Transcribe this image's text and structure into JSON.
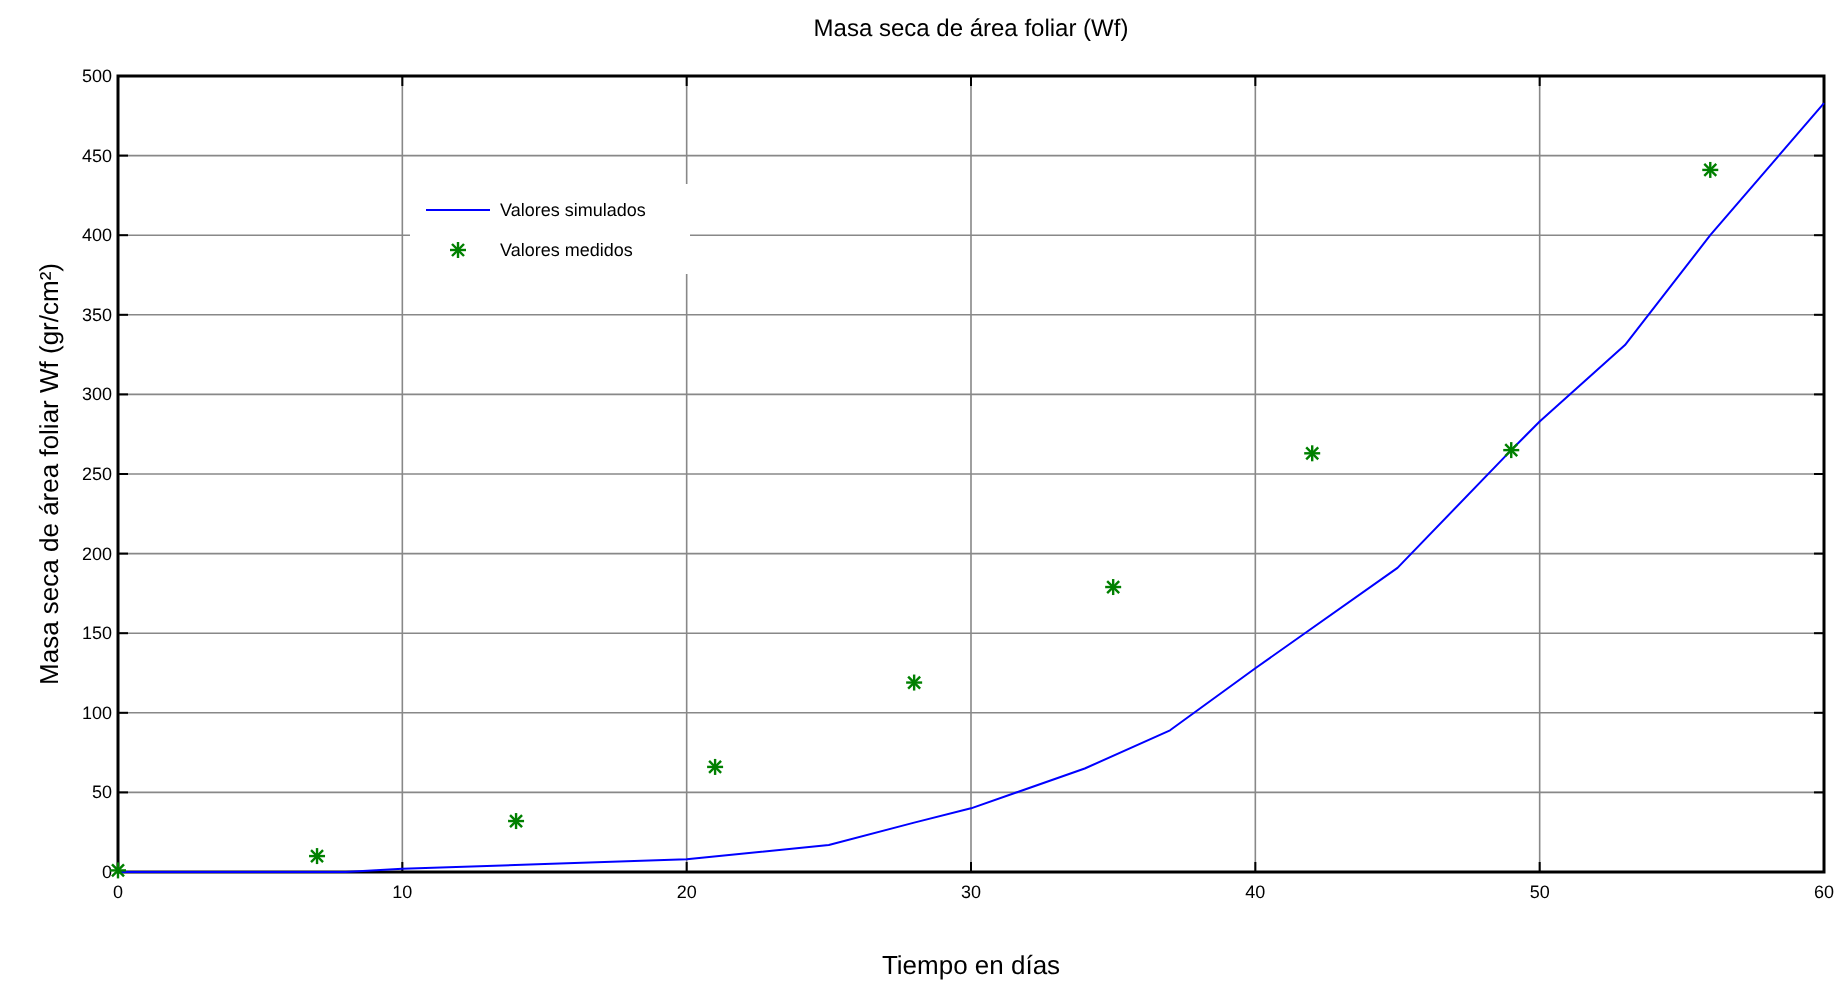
{
  "chart_data": {
    "type": "line",
    "title": "Masa seca de área foliar (Wf)",
    "xlabel": "Tiempo en días",
    "ylabel": "Masa seca de área foliar Wf (gr/cm²)",
    "xlim": [
      0,
      60
    ],
    "xticks": [
      0,
      10,
      20,
      30,
      40,
      50,
      60
    ],
    "ylim": [
      0,
      500
    ],
    "yticks": [
      0,
      50,
      100,
      150,
      200,
      250,
      300,
      350,
      400,
      450,
      500
    ],
    "grid": true,
    "legend": "top left",
    "series": [
      {
        "name": "Valores simulados",
        "color": "#0000ff",
        "marker": "none",
        "line_style": "solid",
        "x": [
          0,
          5,
          8,
          10,
          15,
          20,
          25,
          28,
          30,
          34,
          37,
          40,
          45,
          49,
          50,
          53,
          56,
          60
        ],
        "values": [
          0,
          0,
          0,
          2,
          5,
          8,
          17,
          31,
          40,
          65,
          89,
          128,
          191,
          265,
          283,
          331,
          400,
          483
        ]
      },
      {
        "name": "Valores medidos",
        "type": "scatter",
        "color": "#008000",
        "marker": "cross",
        "x": [
          0,
          7,
          14,
          21,
          28,
          35,
          42,
          49,
          56
        ],
        "values": [
          1,
          10,
          32,
          66,
          119,
          179,
          263,
          265,
          441
        ]
      }
    ]
  }
}
